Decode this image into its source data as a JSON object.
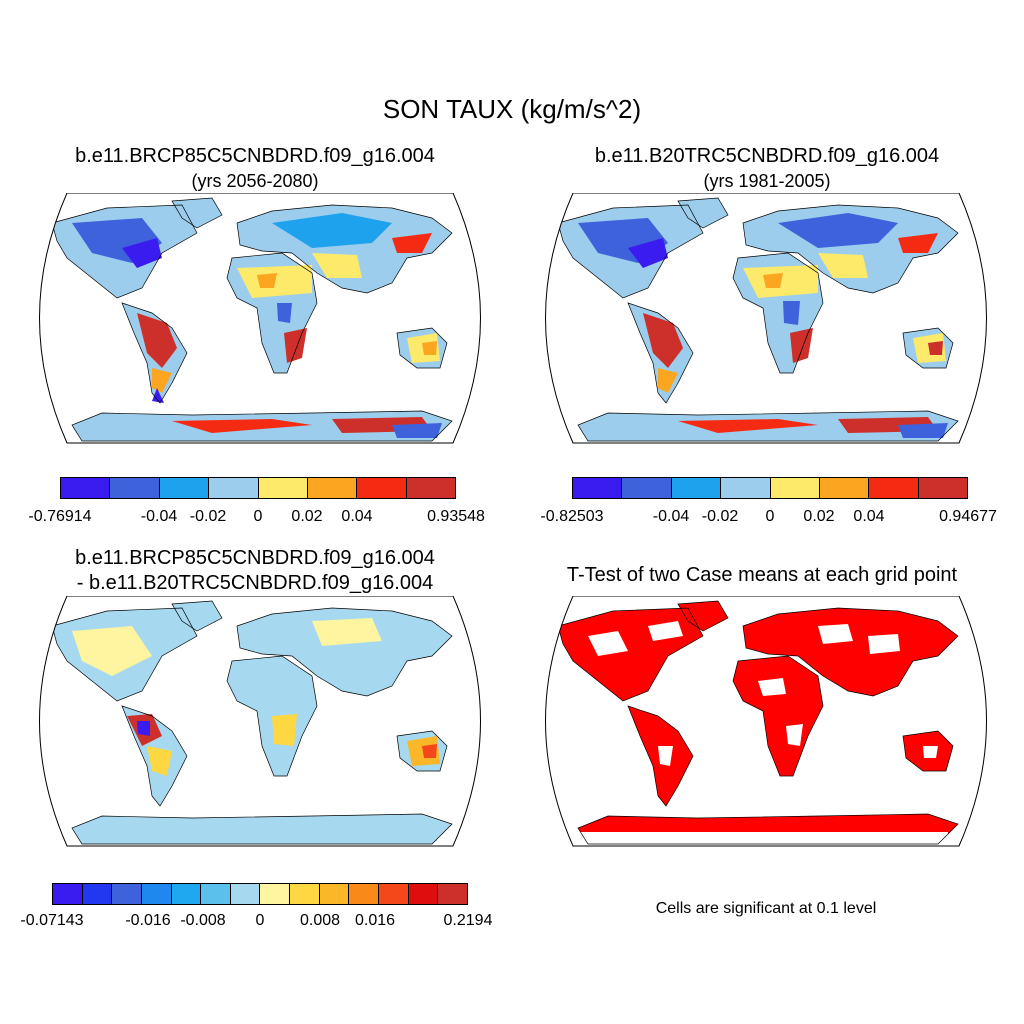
{
  "title": "SON TAUX (kg/m/s^2)",
  "panels": [
    {
      "title_line1": "b.e11.BRCP85C5CNBDRD.f09_g16.004",
      "title_line2": "(yrs 2056-2080)",
      "colorbar": {
        "colors": [
          "#3a1cf0",
          "#3d62dc",
          "#1fa2ee",
          "#9ccdec",
          "#fde96a",
          "#fba520",
          "#f42a12",
          "#cd2f2a"
        ],
        "labels": [
          "-0.76914",
          "-0.04",
          "-0.02",
          "0",
          "0.02",
          "0.04",
          "0.93548"
        ]
      }
    },
    {
      "title_line1": "b.e11.B20TRC5CNBDRD.f09_g16.004",
      "title_line2": "(yrs 1981-2005)",
      "colorbar": {
        "colors": [
          "#3a1cf0",
          "#3d62dc",
          "#1fa2ee",
          "#9ccdec",
          "#fde96a",
          "#fba520",
          "#f42a12",
          "#cd2f2a"
        ],
        "labels": [
          "-0.82503",
          "-0.04",
          "-0.02",
          "0",
          "0.02",
          "0.04",
          "0.94677"
        ]
      }
    },
    {
      "title_line1": "b.e11.BRCP85C5CNBDRD.f09_g16.004",
      "title_line2": "- b.e11.B20TRC5CNBDRD.f09_g16.004",
      "colorbar": {
        "colors": [
          "#3a1cf0",
          "#2238f0",
          "#3d62dc",
          "#1e88ee",
          "#1fa7ef",
          "#5cc0ef",
          "#a6d8f0",
          "#fff4a0",
          "#fed842",
          "#fbb728",
          "#f98a1a",
          "#f4481a",
          "#df0e0e",
          "#cd2f2a"
        ],
        "labels": [
          "-0.07143",
          "-0.016",
          "-0.008",
          "0",
          "0.008",
          "0.016",
          "0.2194"
        ]
      }
    },
    {
      "title_line1": "T-Test of two Case means at each grid point",
      "note": "Cells are significant at 0.1 level"
    }
  ]
}
